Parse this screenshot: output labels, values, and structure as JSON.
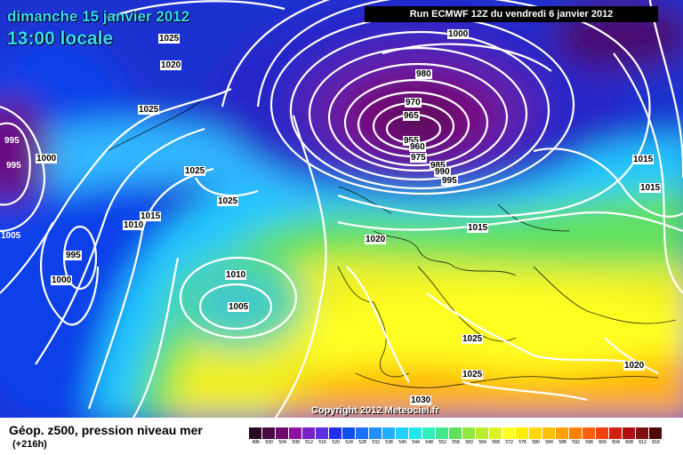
{
  "header": {
    "date": "dimanche 15 janvier 2012",
    "time": "13:00 locale",
    "run": "Run ECMWF 12Z du vendredi 6 janvier 2012"
  },
  "copyright": "Copyright 2012 Meteociel.fr",
  "footer": {
    "title": "Géop. z500, pression niveau mer",
    "subtitle": "(+216h)"
  },
  "isobar_labels": [
    "1025",
    "1020",
    "1025",
    "995",
    "995",
    "1000",
    "1005",
    "1010",
    "1015",
    "995",
    "1000",
    "1025",
    "1025",
    "1010",
    "1005",
    "1000",
    "980",
    "970",
    "965",
    "955",
    "960",
    "975",
    "985",
    "990",
    "995",
    "1020",
    "1015",
    "1015",
    "1015",
    "1025",
    "1025",
    "1030",
    "1020"
  ],
  "legend": {
    "values": [
      "496",
      "500",
      "504",
      "508",
      "512",
      "516",
      "520",
      "524",
      "528",
      "532",
      "536",
      "540",
      "544",
      "548",
      "552",
      "556",
      "560",
      "564",
      "568",
      "572",
      "576",
      "580",
      "584",
      "588",
      "592",
      "596",
      "600",
      "604",
      "608",
      "612",
      "616"
    ],
    "colors": [
      "#2a0a22",
      "#4a0a44",
      "#6e0a6e",
      "#8e10a0",
      "#7a20c8",
      "#5a30e0",
      "#2030e8",
      "#1050f0",
      "#1a70ff",
      "#2090ff",
      "#20b0ff",
      "#20d0ff",
      "#20e8e8",
      "#30f0c0",
      "#40e890",
      "#60e060",
      "#90e840",
      "#b8f030",
      "#e0f020",
      "#ffff20",
      "#fff000",
      "#ffd800",
      "#ffc000",
      "#ffa000",
      "#ff8000",
      "#ff6010",
      "#f04010",
      "#d02010",
      "#b01010",
      "#801010",
      "#500808"
    ]
  }
}
